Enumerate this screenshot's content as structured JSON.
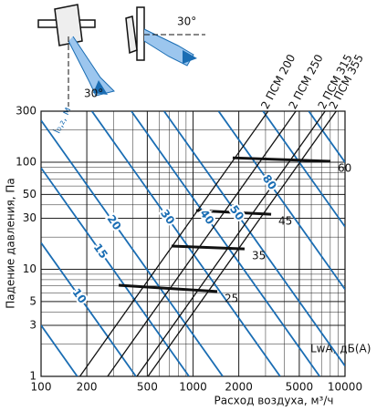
{
  "chart_data": {
    "type": "line",
    "log_x": true,
    "log_y": true,
    "grid": true,
    "minor_grid": true,
    "x_label": "Расход воздуха, м³/ч",
    "y_label": "Падение давления, Па",
    "xlim": [
      100,
      10000
    ],
    "ylim": [
      1,
      300
    ],
    "xticks": [
      100,
      200,
      500,
      1000,
      2000,
      5000,
      10000
    ],
    "yticks": [
      1,
      3,
      5,
      10,
      30,
      50,
      100,
      300
    ],
    "annotations": [
      "30°",
      "30°"
    ],
    "device_lines": {
      "color": "#111",
      "series": [
        {
          "name": "2 ПСМ 200",
          "x": [
            180,
            3118
          ],
          "y": [
            1,
            300
          ]
        },
        {
          "name": "2 ПСМ 250",
          "x": [
            274,
            4746
          ],
          "y": [
            1,
            300
          ]
        },
        {
          "name": "2 ПСМ 315",
          "x": [
            427,
            7396
          ],
          "y": [
            1,
            300
          ]
        },
        {
          "name": "2 ПСМ 355",
          "x": [
            505,
            8747
          ],
          "y": [
            1,
            300
          ]
        }
      ]
    },
    "throw_lines": {
      "title": "l₀,₂, м",
      "color": "#1a6db3",
      "series": [
        {
          "name": null,
          "x": [
            100,
            173
          ],
          "y": [
            3,
            1
          ]
        },
        {
          "name": "10",
          "x": [
            100,
            421
          ],
          "y": [
            17.7,
            1
          ]
        },
        {
          "name": "15",
          "x": [
            100,
            941
          ],
          "y": [
            88.6,
            1
          ]
        },
        {
          "name": "20",
          "x": [
            100,
            1569
          ],
          "y": [
            246,
            1
          ]
        },
        {
          "name": "30",
          "x": [
            216,
            3742
          ],
          "y": [
            300,
            1
          ]
        },
        {
          "name": "40",
          "x": [
            393,
            6812
          ],
          "y": [
            300,
            1
          ]
        },
        {
          "name": "50",
          "x": [
            645,
            10000
          ],
          "y": [
            300,
            1.25
          ]
        },
        {
          "name": "80",
          "x": [
            1472,
            10000
          ],
          "y": [
            300,
            6.5
          ]
        },
        {
          "name": null,
          "x": [
            2887,
            10000
          ],
          "y": [
            300,
            25
          ]
        },
        {
          "name": null,
          "x": [
            5773,
            10000
          ],
          "y": [
            300,
            100
          ]
        }
      ]
    },
    "noise_lines": {
      "title": "LwA, дБ(A)",
      "color": "#111",
      "series": [
        {
          "name": "25",
          "x": [
            324,
            1442
          ],
          "y": [
            7.1,
            6.2
          ]
        },
        {
          "name": "35",
          "x": [
            722,
            2183
          ],
          "y": [
            16.5,
            15.5
          ]
        },
        {
          "name": "45",
          "x": [
            1049,
            3265
          ],
          "y": [
            35.4,
            32.7
          ]
        },
        {
          "name": "60",
          "x": [
            1824,
            8017
          ],
          "y": [
            110,
            102
          ]
        }
      ]
    }
  }
}
